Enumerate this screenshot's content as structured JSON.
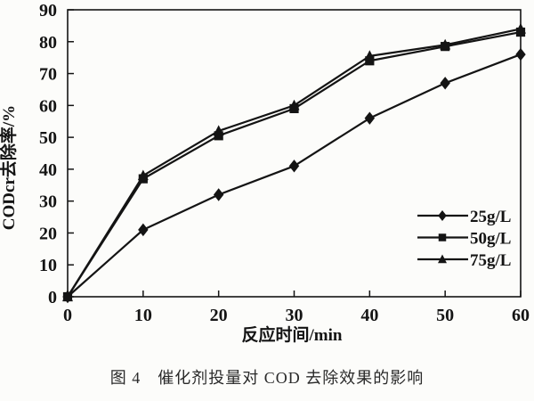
{
  "figure": {
    "caption": "图 4　催化剂投量对 COD 去除效果的影响"
  },
  "chart_data": {
    "type": "line",
    "title": "",
    "xlabel": "反应时间/min",
    "ylabel": "CODcr去除率/%",
    "x": [
      0,
      10,
      20,
      30,
      40,
      50,
      60
    ],
    "xticks": [
      0,
      10,
      20,
      30,
      40,
      50,
      60
    ],
    "yticks": [
      0,
      10,
      20,
      30,
      40,
      50,
      60,
      70,
      80,
      90
    ],
    "xlim": [
      0,
      60
    ],
    "ylim": [
      0,
      90
    ],
    "grid": false,
    "legend_position": "inside-right-middle",
    "ink_color": "#141414",
    "background_color": "#fcfcfa",
    "series": [
      {
        "name": "25g/L",
        "marker": "diamond",
        "values": [
          0,
          21,
          32,
          41,
          56,
          67,
          76
        ]
      },
      {
        "name": "50g/L",
        "marker": "square",
        "values": [
          0,
          37,
          50.5,
          59,
          74,
          78.5,
          83
        ]
      },
      {
        "name": "75g/L",
        "marker": "triangle",
        "values": [
          0,
          38,
          52,
          60,
          75.5,
          79,
          84
        ]
      }
    ]
  }
}
